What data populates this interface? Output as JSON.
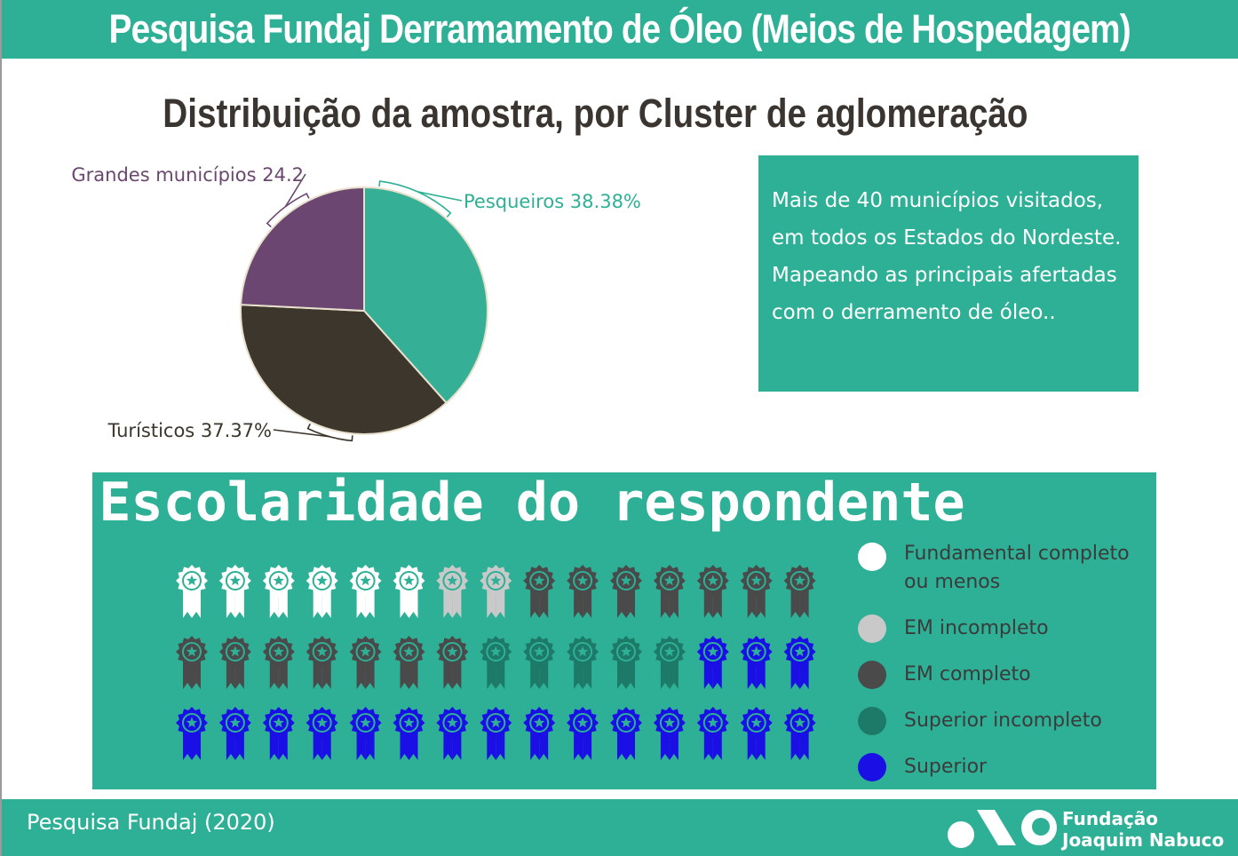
{
  "header": {
    "title": "Pesquisa Fundaj Derramamento de Óleo (Meios de Hospedagem)"
  },
  "colors": {
    "accent": "#2eb096",
    "pesqueiros": "#35b097",
    "turisticos": "#3d362d",
    "grandes": "#6b4670",
    "fundamental": "#ffffff",
    "em_incompleto": "#c9c9c9",
    "em_completo": "#4a4a4a",
    "superior_incompleto": "#1e7a68",
    "superior": "#1a10e6"
  },
  "chart_data": [
    {
      "type": "pie",
      "title": "Distribuição da amostra, por Cluster de aglomeração",
      "slices": [
        {
          "label": "Pesqueiros 38.38%",
          "value": 38.38,
          "color": "#35b097"
        },
        {
          "label": "Turísticos 37.37%",
          "value": 37.37,
          "color": "#3d362d"
        },
        {
          "label": "Grandes municípios 24.2",
          "value": 24.2,
          "color": "#6b4670"
        }
      ]
    },
    {
      "type": "pictogram",
      "title": "Escolaridade do respondente",
      "total": 45,
      "icon": "award-ribbon-icon",
      "categories": [
        {
          "label": "Fundamental completo ou menos",
          "count": 6,
          "color": "#ffffff"
        },
        {
          "label": "EM incompleto",
          "count": 2,
          "color": "#c9c9c9"
        },
        {
          "label": "EM completo",
          "count": 14,
          "color": "#4a4a4a"
        },
        {
          "label": "Superior incompleto",
          "count": 5,
          "color": "#1e7a68"
        },
        {
          "label": "Superior",
          "count": 18,
          "color": "#1a10e6"
        }
      ]
    }
  ],
  "info_box": {
    "text": "Mais de 40 municípios visitados, em todos os Estados do Nordeste. Mapeando as principais afertadas com o derramento de óleo.."
  },
  "footer": {
    "source": "Pesquisa Fundaj (2020)",
    "logo_line1": "Fundação",
    "logo_line2": "Joaquim Nabuco"
  }
}
